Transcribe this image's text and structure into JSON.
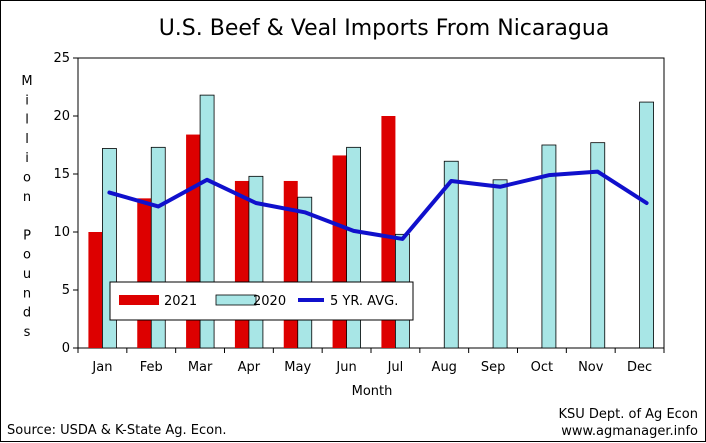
{
  "chart_data": {
    "type": "bar",
    "title": "U.S. Beef & Veal Imports From Nicaragua",
    "xlabel": "Month",
    "ylabel": "Million Pounds",
    "ylim": [
      0,
      25
    ],
    "yticks": [
      "0",
      "5",
      "10",
      "15",
      "20",
      "25"
    ],
    "categories": [
      "Jan",
      "Feb",
      "Mar",
      "Apr",
      "May",
      "Jun",
      "Jul",
      "Aug",
      "Sep",
      "Oct",
      "Nov",
      "Dec"
    ],
    "series": [
      {
        "name": "2021",
        "kind": "bar",
        "color": "#dd0000",
        "values": [
          10.0,
          12.9,
          18.4,
          14.4,
          14.4,
          16.6,
          20.0,
          null,
          null,
          null,
          null,
          null
        ]
      },
      {
        "name": "2020",
        "kind": "bar",
        "color": "#a8e6e6",
        "values": [
          17.2,
          17.3,
          21.8,
          14.8,
          13.0,
          17.3,
          9.8,
          16.1,
          14.5,
          17.5,
          17.7,
          21.2
        ]
      },
      {
        "name": "5 YR. AVG.",
        "kind": "line",
        "color": "#1010cc",
        "values": [
          13.4,
          12.2,
          14.5,
          12.5,
          11.7,
          10.1,
          9.4,
          14.4,
          13.9,
          14.9,
          15.2,
          12.5
        ]
      }
    ],
    "legend": "inside-bottom-left",
    "grid": false
  },
  "footer": {
    "source": "Source:  USDA & K-State Ag. Econ.",
    "credit_line1": "KSU Dept. of Ag Econ",
    "credit_line2": "www.agmanager.info"
  }
}
